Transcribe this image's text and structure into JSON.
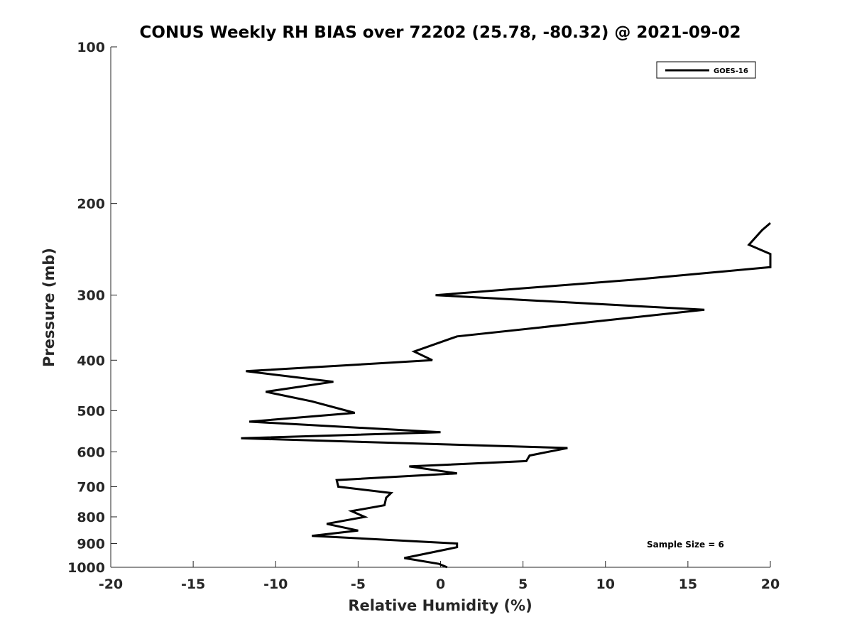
{
  "chart_data": {
    "type": "line",
    "title": "CONUS Weekly RH BIAS over 72202 (25.78, -80.32) @ 2021-09-02",
    "xlabel": "Relative Humidity (%)",
    "ylabel": "Pressure (mb)",
    "xlim": [
      -20,
      20
    ],
    "ylim": [
      1000,
      100
    ],
    "yscale": "log",
    "x_ticks": [
      -20,
      -15,
      -10,
      -5,
      0,
      5,
      10,
      15,
      20
    ],
    "y_ticks": [
      100,
      200,
      300,
      400,
      500,
      600,
      700,
      800,
      900,
      1000
    ],
    "grid": false,
    "legend_position": "top-right",
    "series": [
      {
        "name": "GOES-16",
        "color": "#000000",
        "points": [
          {
            "x": 0.4,
            "y": 1000
          },
          {
            "x": -0.1,
            "y": 985
          },
          {
            "x": -2.2,
            "y": 960
          },
          {
            "x": 1.0,
            "y": 915
          },
          {
            "x": 1.0,
            "y": 900
          },
          {
            "x": -7.8,
            "y": 870
          },
          {
            "x": -5.0,
            "y": 850
          },
          {
            "x": -6.9,
            "y": 825
          },
          {
            "x": -4.6,
            "y": 800
          },
          {
            "x": -5.4,
            "y": 780
          },
          {
            "x": -3.4,
            "y": 760
          },
          {
            "x": -3.3,
            "y": 735
          },
          {
            "x": -3.0,
            "y": 720
          },
          {
            "x": -6.2,
            "y": 700
          },
          {
            "x": -6.3,
            "y": 680
          },
          {
            "x": 1.0,
            "y": 660
          },
          {
            "x": -1.9,
            "y": 640
          },
          {
            "x": 5.2,
            "y": 625
          },
          {
            "x": 5.4,
            "y": 610
          },
          {
            "x": 7.7,
            "y": 590
          },
          {
            "x": -12.1,
            "y": 565
          },
          {
            "x": 0.0,
            "y": 550
          },
          {
            "x": -11.6,
            "y": 525
          },
          {
            "x": -5.2,
            "y": 505
          },
          {
            "x": -7.8,
            "y": 480
          },
          {
            "x": -10.6,
            "y": 460
          },
          {
            "x": -6.5,
            "y": 440
          },
          {
            "x": -11.8,
            "y": 420
          },
          {
            "x": -0.5,
            "y": 400
          },
          {
            "x": -1.6,
            "y": 385
          },
          {
            "x": 1.0,
            "y": 360
          },
          {
            "x": 16.0,
            "y": 320
          },
          {
            "x": -0.3,
            "y": 300
          },
          {
            "x": 11.8,
            "y": 280
          },
          {
            "x": 20.0,
            "y": 265
          },
          {
            "x": 20.0,
            "y": 250
          },
          {
            "x": 18.7,
            "y": 240
          },
          {
            "x": 19.5,
            "y": 225
          },
          {
            "x": 20.0,
            "y": 218
          }
        ]
      }
    ],
    "annotation": "Sample Size = 6"
  }
}
